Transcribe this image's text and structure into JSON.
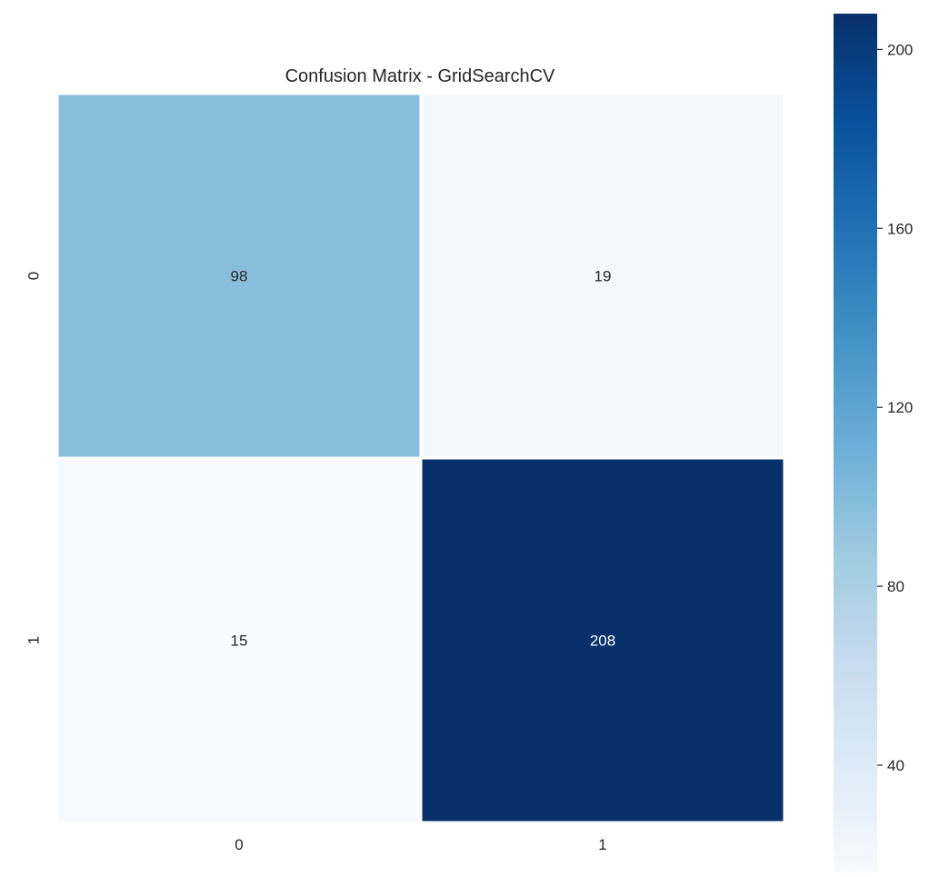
{
  "chart_data": {
    "type": "heatmap",
    "title": "Confusion Matrix - GridSearchCV",
    "xlabel": "",
    "ylabel": "",
    "x_categories": [
      "0",
      "1"
    ],
    "y_categories": [
      "0",
      "1"
    ],
    "values": [
      [
        98,
        19
      ],
      [
        15,
        208
      ]
    ],
    "colormap": "Blues",
    "colorbar": {
      "range": [
        15,
        208
      ],
      "ticks": [
        40,
        80,
        120,
        160,
        200
      ],
      "tick_labels": [
        "40",
        "80",
        "120",
        "160",
        "200"
      ]
    },
    "gridlines_between_cells": true,
    "cell_text_dark_color": "#262626",
    "cell_text_light_color": "#ffffff"
  }
}
